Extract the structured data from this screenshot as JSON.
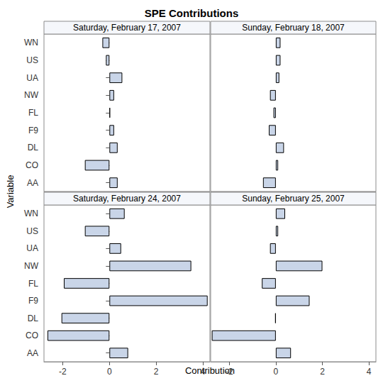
{
  "chart_data": {
    "type": "bar",
    "title": "SPE Contributions",
    "orientation": "horizontal",
    "xlabel": "Contribution",
    "ylabel": "Variable",
    "categories": [
      "AA",
      "CO",
      "DL",
      "F9",
      "FL",
      "NW",
      "UA",
      "US",
      "WN"
    ],
    "color": "#c9d5e8",
    "xlim": [
      -2.8,
      4.3
    ],
    "xticks": [
      -2,
      0,
      2,
      4
    ],
    "grid": false,
    "panels": [
      {
        "title": "Saturday, February 17, 2007",
        "values": [
          0.35,
          -1.05,
          0.35,
          0.2,
          0.03,
          0.2,
          0.55,
          -0.15,
          -0.3
        ]
      },
      {
        "title": "Sunday, February 18, 2007",
        "values": [
          -0.55,
          0.1,
          0.35,
          -0.3,
          -0.1,
          -0.25,
          0.15,
          0.2,
          0.2
        ]
      },
      {
        "title": "Saturday, February 24, 2007",
        "values": [
          0.8,
          -2.65,
          -2.05,
          4.2,
          -1.95,
          3.5,
          0.5,
          -1.05,
          0.65
        ]
      },
      {
        "title": "Sunday, February 25, 2007",
        "values": [
          0.65,
          -2.75,
          -0.03,
          1.45,
          -0.6,
          2.0,
          -0.25,
          0.1,
          0.4
        ]
      }
    ]
  }
}
